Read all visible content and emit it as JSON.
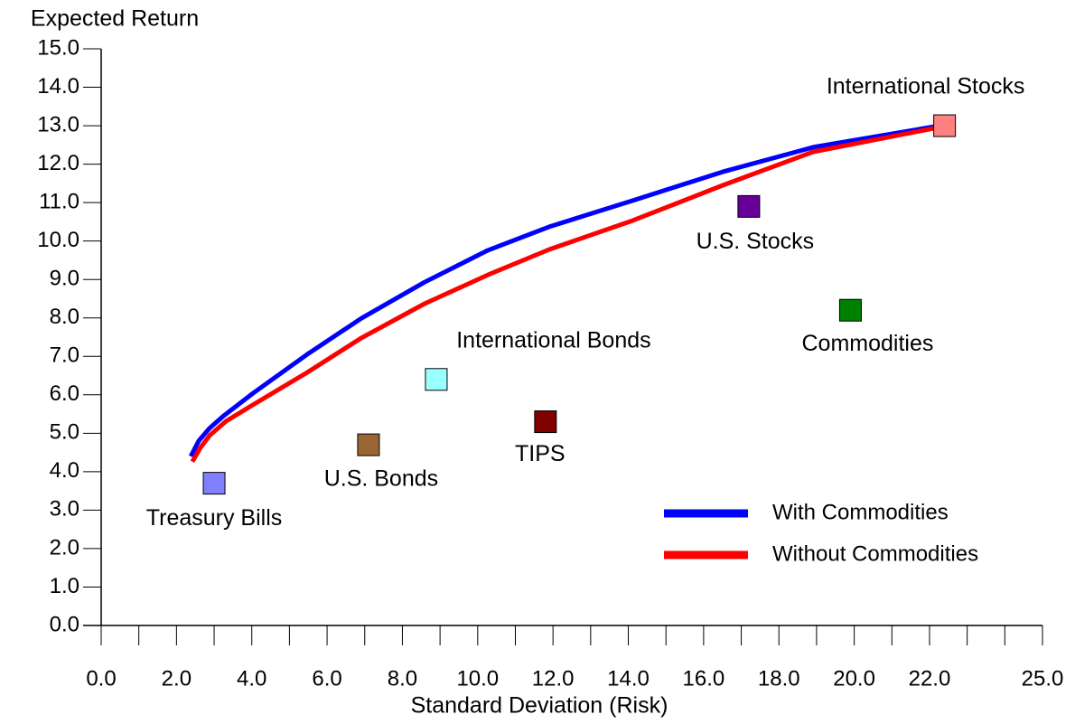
{
  "chart_data": {
    "type": "scatter",
    "y_label": "Expected Return",
    "x_label": "Standard Deviation (Risk)",
    "xlim": [
      0,
      25
    ],
    "ylim": [
      0,
      15
    ],
    "xticks": [
      {
        "value": 0,
        "label": "0.0"
      },
      {
        "value": 2,
        "label": "2.0"
      },
      {
        "value": 4,
        "label": "4.0"
      },
      {
        "value": 6,
        "label": "6.0"
      },
      {
        "value": 8,
        "label": "8.0"
      },
      {
        "value": 10,
        "label": "10.0"
      },
      {
        "value": 12,
        "label": "12.0"
      },
      {
        "value": 14,
        "label": "14.0"
      },
      {
        "value": 16,
        "label": "16.0"
      },
      {
        "value": 18,
        "label": "18.0"
      },
      {
        "value": 20,
        "label": "20.0"
      },
      {
        "value": 22,
        "label": "22.0"
      },
      {
        "value": 25,
        "label": "25.0"
      }
    ],
    "xminorticks": [
      1,
      3,
      5,
      7,
      9,
      11,
      13,
      15,
      17,
      19,
      21,
      23,
      24
    ],
    "yticks": [
      {
        "value": 0,
        "label": "0.0"
      },
      {
        "value": 1,
        "label": "1.0"
      },
      {
        "value": 2,
        "label": "2.0"
      },
      {
        "value": 3,
        "label": "3.0"
      },
      {
        "value": 4,
        "label": "4.0"
      },
      {
        "value": 5,
        "label": "5.0"
      },
      {
        "value": 6,
        "label": "6.0"
      },
      {
        "value": 7,
        "label": "7.0"
      },
      {
        "value": 8,
        "label": "8.0"
      },
      {
        "value": 9,
        "label": "9.0"
      },
      {
        "value": 10,
        "label": "10.0"
      },
      {
        "value": 11,
        "label": "11.0"
      },
      {
        "value": 12,
        "label": "12.0"
      },
      {
        "value": 13,
        "label": "13.0"
      },
      {
        "value": 14,
        "label": "14.0"
      },
      {
        "value": 15,
        "label": "15.0"
      }
    ],
    "points": {
      "labels": [
        "Treasury Bills",
        "U.S. Bonds",
        "International Bonds",
        "TIPS",
        "U.S. Stocks",
        "Commodities",
        "International Stocks"
      ],
      "x": [
        3.0,
        7.1,
        8.9,
        11.8,
        17.2,
        19.9,
        22.4
      ],
      "y": [
        3.7,
        4.7,
        6.4,
        5.3,
        10.9,
        8.2,
        13.0
      ],
      "colors": [
        "#8080ff",
        "#996633",
        "#99ffff",
        "#800000",
        "#660099",
        "#008000",
        "#ff8080"
      ]
    },
    "series": [
      {
        "name": "With Commodities",
        "color": "#0000ff",
        "x": [
          2.38,
          2.59,
          2.88,
          3.26,
          4.03,
          5.47,
          6.91,
          8.59,
          10.27,
          11.9,
          14.11,
          16.51,
          18.91,
          22.26
        ],
        "values": [
          4.4,
          4.8,
          5.13,
          5.46,
          6.04,
          7.05,
          7.99,
          8.93,
          9.76,
          10.37,
          11.05,
          11.8,
          12.44,
          13.0
        ]
      },
      {
        "name": "Without Commodities",
        "color": "#ff0000",
        "x": [
          2.42,
          2.64,
          2.88,
          3.31,
          4.03,
          5.47,
          6.91,
          8.59,
          10.27,
          11.9,
          14.11,
          16.51,
          18.91,
          22.26
        ],
        "values": [
          4.26,
          4.63,
          4.94,
          5.31,
          5.74,
          6.58,
          7.48,
          8.37,
          9.12,
          9.78,
          10.53,
          11.45,
          12.32,
          12.96
        ]
      }
    ]
  }
}
